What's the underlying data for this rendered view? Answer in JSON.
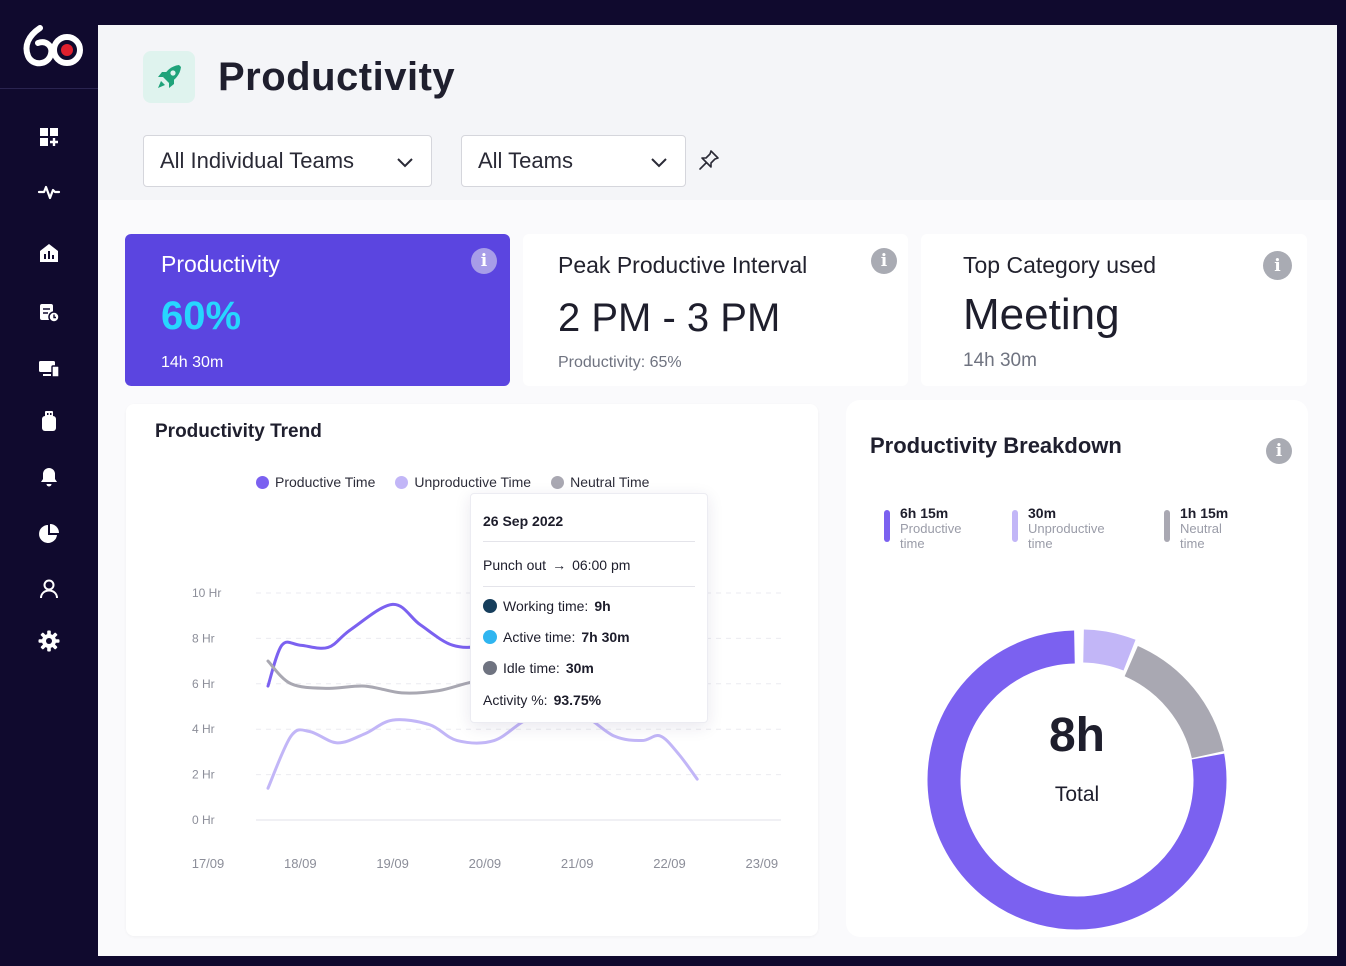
{
  "header": {
    "title": "Productivity",
    "filters": [
      {
        "value": "All Individual Teams"
      },
      {
        "value": "All Teams"
      }
    ]
  },
  "stats": [
    {
      "title": "Productivity",
      "value": "60%",
      "sub": "14h 30m",
      "accent": "#5b45e0",
      "value_color": "#27d6ff"
    },
    {
      "title": "Peak Productive Interval",
      "value": "2 PM - 3 PM",
      "sub": "Productivity: 65%"
    },
    {
      "title": "Top Category used",
      "value": "Meeting",
      "sub": "14h 30m"
    }
  ],
  "trend": {
    "title": "Productivity Trend",
    "legend": [
      {
        "name": "Productive Time",
        "color": "#7b61f0"
      },
      {
        "name": "Unproductive Time",
        "color": "#c2b6f7"
      },
      {
        "name": "Neutral Time",
        "color": "#a9a8b2"
      }
    ],
    "tooltip": {
      "date": "26 Sep 2022",
      "punch_label": "Punch out",
      "punch_value": "06:00 pm",
      "rows": [
        {
          "label": "Working time:",
          "value": "9h",
          "color": "#163e5c"
        },
        {
          "label": "Active time:",
          "value": "7h 30m",
          "color": "#2fb5f0"
        },
        {
          "label": "Idle time:",
          "value": "30m",
          "color": "#6f7380"
        }
      ],
      "activity_label": "Activity %:",
      "activity_value": "93.75%"
    }
  },
  "chart_data": {
    "type": "line",
    "title": "Productivity Trend",
    "x": [
      "17/09",
      "18/09",
      "19/09",
      "20/09",
      "21/09",
      "22/09",
      "23/09"
    ],
    "y_ticks": [
      "10 Hr",
      "8 Hr",
      "6 Hr",
      "4 Hr",
      "2 Hr",
      "0 Hr"
    ],
    "ylim": [
      0,
      10
    ],
    "grid": true,
    "legend_position": "top",
    "series": [
      {
        "name": "Productive Time",
        "color": "#7b61f0",
        "points": [
          [
            0.65,
            5.9
          ],
          [
            0.8,
            7.7
          ],
          [
            1.0,
            7.7
          ],
          [
            1.3,
            7.6
          ],
          [
            1.55,
            8.4
          ],
          [
            2.0,
            9.5
          ],
          [
            2.3,
            8.6
          ],
          [
            2.65,
            7.7
          ],
          [
            3.0,
            7.7
          ],
          [
            3.5,
            8.3
          ],
          [
            4.0,
            8.0
          ],
          [
            4.5,
            7.0
          ],
          [
            4.8,
            6.0
          ]
        ]
      },
      {
        "name": "Unproductive Time",
        "color": "#c2b6f7",
        "points": [
          [
            0.65,
            1.4
          ],
          [
            0.9,
            3.7
          ],
          [
            1.1,
            3.9
          ],
          [
            1.4,
            3.4
          ],
          [
            1.7,
            3.8
          ],
          [
            2.0,
            4.4
          ],
          [
            2.4,
            4.2
          ],
          [
            2.7,
            3.5
          ],
          [
            3.1,
            3.5
          ],
          [
            3.5,
            4.5
          ],
          [
            4.0,
            4.7
          ],
          [
            4.4,
            3.7
          ],
          [
            4.7,
            3.5
          ],
          [
            4.9,
            3.7
          ],
          [
            5.1,
            2.9
          ],
          [
            5.3,
            1.8
          ]
        ]
      },
      {
        "name": "Neutral Time",
        "color": "#a9a8b2",
        "points": [
          [
            0.65,
            7.0
          ],
          [
            0.9,
            6.0
          ],
          [
            1.3,
            5.8
          ],
          [
            1.7,
            5.9
          ],
          [
            2.1,
            5.6
          ],
          [
            2.5,
            5.7
          ],
          [
            2.9,
            6.1
          ],
          [
            3.3,
            6.1
          ],
          [
            3.7,
            5.8
          ],
          [
            4.3,
            5.7
          ],
          [
            4.7,
            5.9
          ],
          [
            5.0,
            6.3
          ],
          [
            5.2,
            5.6
          ]
        ]
      }
    ]
  },
  "breakdown": {
    "title": "Productivity Breakdown",
    "items": [
      {
        "value": "6h 15m",
        "label1": "Productive",
        "label2": "time",
        "color": "#7b61f0"
      },
      {
        "value": "30m",
        "label1": "Unproductive",
        "label2": "time",
        "color": "#c2b6f7"
      },
      {
        "value": "1h 15m",
        "label1": "Neutral",
        "label2": "time",
        "color": "#a9a8b2"
      }
    ],
    "total_value": "8h",
    "total_label": "Total",
    "donut": [
      {
        "name": "Productive",
        "value": 6.25,
        "color": "#7b61f0"
      },
      {
        "name": "Unproductive",
        "value": 0.5,
        "color": "#c2b6f7"
      },
      {
        "name": "Neutral",
        "value": 1.25,
        "color": "#a9a8b2"
      }
    ]
  }
}
